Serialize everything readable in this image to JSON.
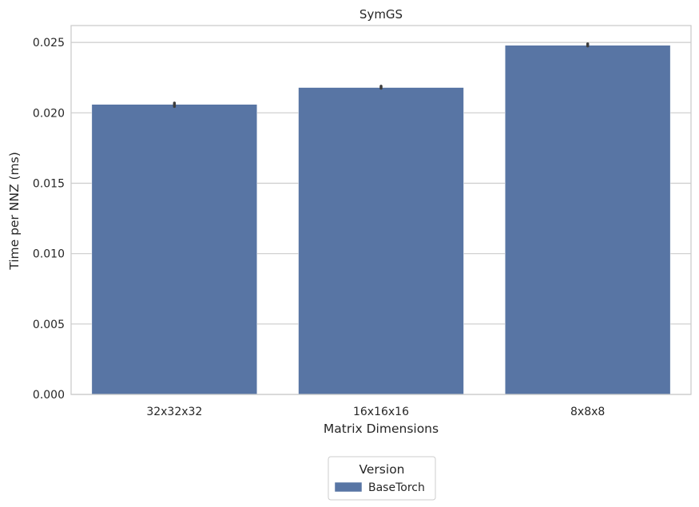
{
  "chart_data": {
    "type": "bar",
    "title": "SymGS",
    "xlabel": "Matrix Dimensions",
    "ylabel": "Time per NNZ (ms)",
    "categories": [
      "32x32x32",
      "16x16x16",
      "8x8x8"
    ],
    "series": [
      {
        "name": "BaseTorch",
        "color": "#5875a4",
        "values": [
          0.0206,
          0.0218,
          0.0248
        ],
        "error_low": [
          0.02045,
          0.02175,
          0.02475
        ],
        "error_high": [
          0.0207,
          0.0219,
          0.0249
        ]
      }
    ],
    "ylim": [
      0,
      0.0262
    ],
    "yticks": [
      "0.000",
      "0.005",
      "0.010",
      "0.015",
      "0.020",
      "0.025"
    ],
    "ytick_values": [
      0,
      0.005,
      0.01,
      0.015,
      0.02,
      0.025
    ],
    "grid": "horizontal",
    "legend": {
      "title": "Version",
      "placement": "bottom-center",
      "entries": [
        "BaseTorch"
      ]
    }
  }
}
